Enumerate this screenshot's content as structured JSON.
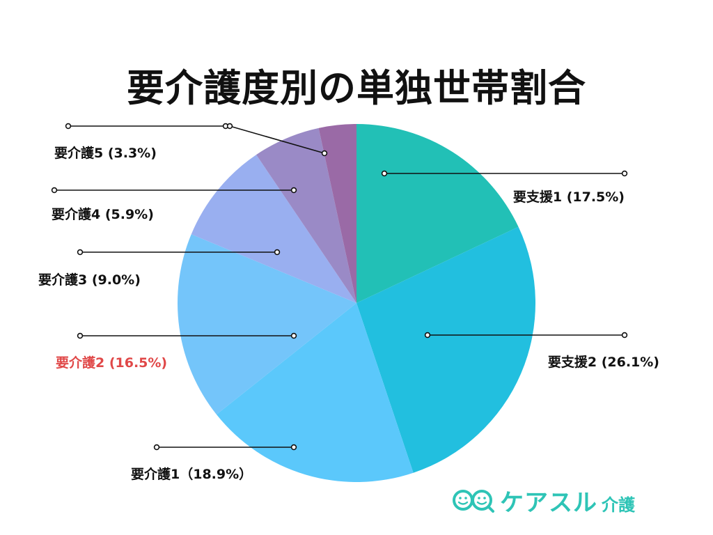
{
  "chart_data": {
    "type": "pie",
    "title": "要介護度別の単独世帯割合",
    "slices": [
      {
        "label": "要支援1",
        "display": "要支援1 (17.5%)",
        "value": 17.5,
        "color": "#22c0b6",
        "label_color": "#111111"
      },
      {
        "label": "要支援2",
        "display": "要支援2 (26.1%)",
        "value": 26.1,
        "color": "#22bfdf",
        "label_color": "#111111"
      },
      {
        "label": "要介護1",
        "display": "要介護1（18.9%）",
        "value": 18.9,
        "color": "#5bc8fb",
        "label_color": "#111111"
      },
      {
        "label": "要介護2",
        "display": "要介護2 (16.5%)",
        "value": 16.5,
        "color": "#74c5fa",
        "label_color": "#e04848"
      },
      {
        "label": "要介護3",
        "display": "要介護3 (9.0%)",
        "value": 9.0,
        "color": "#99aff0",
        "label_color": "#111111"
      },
      {
        "label": "要介護4",
        "display": "要介護4 (5.9%)",
        "value": 5.9,
        "color": "#9a8ac6",
        "label_color": "#111111"
      },
      {
        "label": "要介護5",
        "display": "要介護5 (3.3%)",
        "value": 3.3,
        "color": "#9a6aa6",
        "label_color": "#111111"
      }
    ]
  },
  "logo": {
    "text": "ケアスル",
    "sub": "介護",
    "color": "#2ec4b6"
  }
}
